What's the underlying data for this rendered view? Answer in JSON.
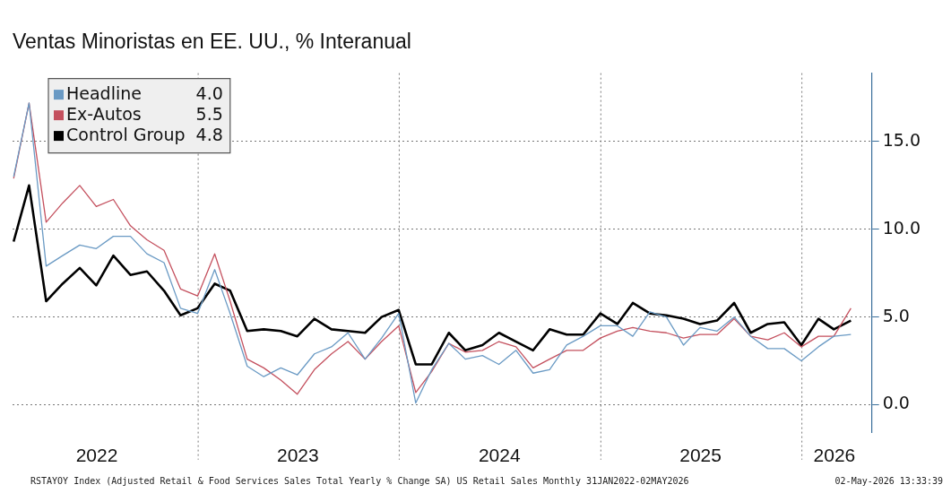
{
  "chart_data": {
    "type": "line",
    "title": "Ventas Minoristas en EE. UU., % Interanual",
    "x": [
      "2022-01-31",
      "2022-02-28",
      "2022-03-31",
      "2022-04-30",
      "2022-05-31",
      "2022-06-30",
      "2022-07-31",
      "2022-08-31",
      "2022-09-30",
      "2022-10-31",
      "2022-11-30",
      "2022-12-31",
      "2023-01-31",
      "2023-02-28",
      "2023-03-31",
      "2023-04-30",
      "2023-05-31",
      "2023-06-30",
      "2023-07-31",
      "2023-08-31",
      "2023-09-30",
      "2023-10-31",
      "2023-11-30",
      "2023-12-31",
      "2024-01-31",
      "2024-02-29",
      "2024-03-31",
      "2024-04-30",
      "2024-05-31",
      "2024-06-30",
      "2024-07-31",
      "2024-08-31",
      "2024-09-30",
      "2024-10-31",
      "2024-11-30",
      "2024-12-31",
      "2025-01-31",
      "2025-02-28",
      "2025-03-31",
      "2025-04-30",
      "2025-05-31",
      "2025-06-30",
      "2025-07-31",
      "2025-08-31",
      "2025-09-30",
      "2025-10-31",
      "2025-11-30",
      "2025-12-31",
      "2026-01-31",
      "2026-02-28",
      "2026-03-31"
    ],
    "series": [
      {
        "name": "Headline",
        "color": "#6a9ac4",
        "values": [
          13.0,
          17.2,
          7.9,
          8.5,
          9.1,
          8.9,
          9.6,
          9.6,
          8.6,
          8.1,
          5.5,
          5.2,
          7.7,
          5.2,
          2.2,
          1.6,
          2.1,
          1.7,
          2.9,
          3.3,
          4.1,
          2.6,
          3.8,
          5.2,
          0.1,
          2.0,
          3.5,
          2.6,
          2.8,
          2.3,
          3.1,
          1.8,
          2.0,
          3.4,
          3.9,
          4.5,
          4.5,
          3.9,
          5.3,
          5.0,
          3.4,
          4.4,
          4.2,
          5.0,
          3.9,
          3.2,
          3.2,
          2.5,
          3.3,
          3.9,
          4.0
        ]
      },
      {
        "name": "Ex-Autos",
        "color": "#c4505e",
        "values": [
          12.9,
          17.2,
          10.4,
          11.5,
          12.5,
          11.3,
          11.7,
          10.2,
          9.4,
          8.8,
          6.6,
          6.2,
          8.6,
          5.9,
          2.6,
          2.1,
          1.4,
          0.6,
          2.0,
          2.9,
          3.6,
          2.6,
          3.6,
          4.5,
          0.7,
          1.9,
          3.5,
          3.0,
          3.1,
          3.6,
          3.3,
          2.1,
          2.6,
          3.1,
          3.1,
          3.8,
          4.2,
          4.4,
          4.2,
          4.1,
          3.8,
          4.0,
          4.0,
          4.9,
          3.9,
          3.7,
          4.1,
          3.3,
          3.9,
          3.9,
          5.5
        ]
      },
      {
        "name": "Control Group",
        "color": "#000000",
        "values": [
          9.3,
          12.5,
          5.9,
          6.9,
          7.8,
          6.8,
          8.5,
          7.4,
          7.6,
          6.5,
          5.1,
          5.5,
          6.9,
          6.5,
          4.2,
          4.3,
          4.2,
          3.9,
          4.9,
          4.3,
          4.2,
          4.1,
          5.0,
          5.4,
          2.3,
          2.3,
          4.1,
          3.1,
          3.4,
          4.1,
          3.6,
          3.1,
          4.3,
          4.0,
          4.0,
          5.2,
          4.6,
          5.8,
          5.2,
          5.1,
          4.9,
          4.6,
          4.8,
          5.8,
          4.1,
          4.6,
          4.7,
          3.4,
          4.9,
          4.3,
          4.8
        ]
      }
    ],
    "xlim": [
      "2022-01-29",
      "2026-05-08"
    ],
    "xticks": [
      {
        "value": "2022-07-01",
        "label": "2022"
      },
      {
        "value": "2023-01-01",
        "label": null
      },
      {
        "value": "2023-07-01",
        "label": "2023"
      },
      {
        "value": "2024-01-01",
        "label": null
      },
      {
        "value": "2024-07-01",
        "label": "2024"
      },
      {
        "value": "2025-01-01",
        "label": null
      },
      {
        "value": "2025-07-01",
        "label": "2025"
      },
      {
        "value": "2026-01-01",
        "label": null
      },
      {
        "value": "2026-03-01",
        "label": "2026"
      }
    ],
    "ylim": [
      -1.6,
      18.9
    ],
    "yticks": [
      {
        "value": 0,
        "label": "0.0"
      },
      {
        "value": 5,
        "label": "5.0"
      },
      {
        "value": 10,
        "label": "10.0"
      },
      {
        "value": 15,
        "label": "15.0"
      }
    ],
    "grid": true,
    "legend": "top left",
    "marker": "none",
    "line_style": "solid",
    "annotations": [
      "4.0",
      "5.5",
      "4.8",
      "RSTAYOY Index (Adjusted Retail & Food Services Sales Total Yearly % Change SA) US Retail Sales Monthly 31JAN2022-02MAY2026",
      "02-May-2026 13:33:39"
    ]
  }
}
